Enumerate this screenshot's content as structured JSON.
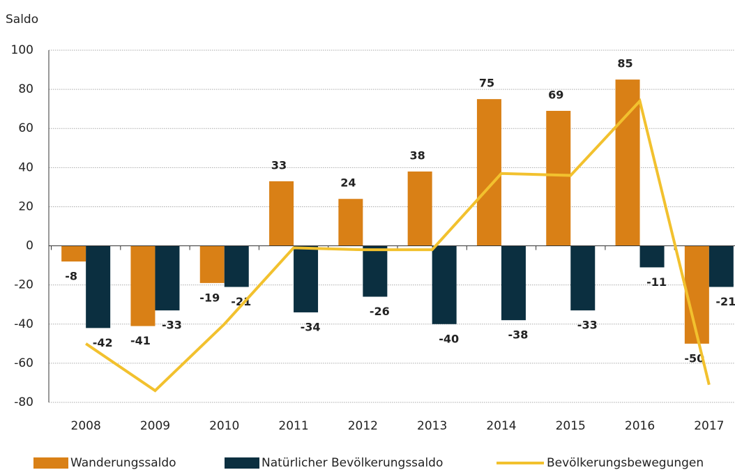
{
  "chart_data": {
    "type": "bar_line",
    "ylabel": "Saldo",
    "categories": [
      "2008",
      "2009",
      "2010",
      "2011",
      "2012",
      "2013",
      "2014",
      "2015",
      "2016",
      "2017"
    ],
    "series": [
      {
        "name": "Wanderungssaldo",
        "type": "bar",
        "color": "#d98016",
        "values": [
          -8,
          -41,
          -19,
          33,
          24,
          38,
          75,
          69,
          85,
          -50
        ]
      },
      {
        "name": "Natürlicher Bevölkerungssaldo",
        "type": "bar",
        "color": "#0b2f40",
        "values": [
          -42,
          -33,
          -21,
          -34,
          -26,
          -40,
          -38,
          -33,
          -11,
          -21
        ]
      },
      {
        "name": "Bevölkerungsbewegungen",
        "type": "line",
        "color": "#f2c12e",
        "values": [
          -50,
          -74,
          -40,
          -1,
          -2,
          -2,
          37,
          36,
          74,
          -71
        ]
      }
    ],
    "ylim": [
      -80,
      100
    ],
    "yticks": [
      -80,
      -60,
      -40,
      -20,
      0,
      20,
      40,
      60,
      80,
      100
    ],
    "grid": true
  }
}
